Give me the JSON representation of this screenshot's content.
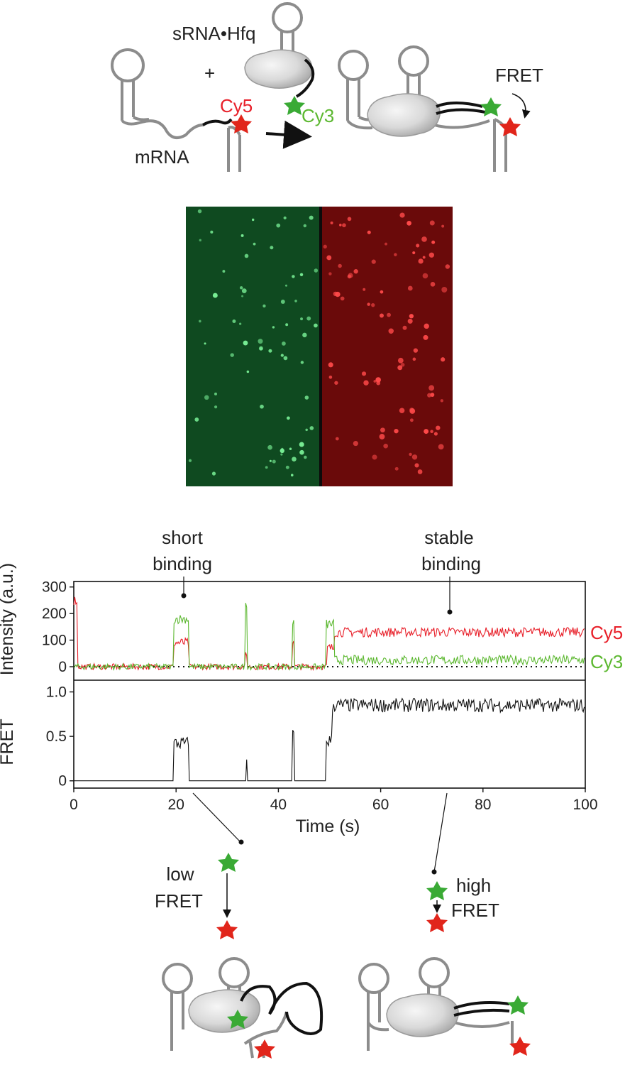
{
  "top_diagram": {
    "srna_hfq_label": "sRNA•Hfq",
    "plus_label": "+",
    "cy5_label": "Cy5",
    "cy3_label": "Cy3",
    "mrna_label": "mRNA",
    "fret_label": "FRET"
  },
  "micrograph": {
    "left_channel_color": "#0f4a20",
    "right_channel_color": "#6a0a0a"
  },
  "annotations": {
    "short_binding_line1": "short",
    "short_binding_line2": "binding",
    "stable_binding_line1": "stable",
    "stable_binding_line2": "binding"
  },
  "intensity_panel": {
    "ylabel": "Intensity (a.u.)",
    "yticks": [
      "300",
      "200",
      "100",
      "0"
    ],
    "cy5_series_label": "Cy5",
    "cy3_series_label": "Cy3"
  },
  "fret_panel": {
    "ylabel": "FRET",
    "yticks": [
      "1.0",
      "0.5",
      "0"
    ]
  },
  "bottom_diagram": {
    "low_fret_line1": "low",
    "low_fret_line2": "FRET",
    "high_fret_line1": "high",
    "high_fret_line2": "FRET"
  },
  "colors": {
    "cy5": "#e8202a",
    "cy3": "#5cb830",
    "star_green": "#3aaa35",
    "star_red": "#e1251b",
    "rna_gray": "#8c8c8c",
    "srna_black": "#111111"
  },
  "chart_data": {
    "type": "line",
    "xlabel": "Time (s)",
    "xlim": [
      0,
      100
    ],
    "xticks": [
      "0",
      "20",
      "40",
      "60",
      "80",
      "100"
    ],
    "panels": [
      {
        "ylabel": "Intensity (a.u.)",
        "ylim": [
          -40,
          310
        ],
        "yticks": [
          0,
          100,
          200,
          300
        ],
        "baseline_dotted": 0,
        "series": [
          {
            "name": "Cy5",
            "color": "#e8202a",
            "segments": [
              {
                "from": 0,
                "to": 0.8,
                "value": 250
              },
              {
                "from": 0.8,
                "to": 19.5,
                "value": 0
              },
              {
                "from": 19.5,
                "to": 22.5,
                "value": 90
              },
              {
                "from": 22.5,
                "to": 33.5,
                "value": 0
              },
              {
                "from": 33.5,
                "to": 33.8,
                "value": 40
              },
              {
                "from": 33.8,
                "to": 42.8,
                "value": 0
              },
              {
                "from": 42.8,
                "to": 43.1,
                "value": 100
              },
              {
                "from": 43.1,
                "to": 49.5,
                "value": 0
              },
              {
                "from": 49.5,
                "to": 51,
                "value": 70
              },
              {
                "from": 51,
                "to": 100,
                "value": 130
              }
            ]
          },
          {
            "name": "Cy3",
            "color": "#5cb830",
            "segments": [
              {
                "from": 0,
                "to": 19.5,
                "value": 0
              },
              {
                "from": 19.5,
                "to": 22.5,
                "value": 180
              },
              {
                "from": 22.5,
                "to": 33.5,
                "value": 0
              },
              {
                "from": 33.5,
                "to": 33.8,
                "value": 240
              },
              {
                "from": 33.8,
                "to": 42.8,
                "value": 0
              },
              {
                "from": 42.8,
                "to": 43.1,
                "value": 160
              },
              {
                "from": 43.1,
                "to": 49.3,
                "value": 0
              },
              {
                "from": 49.3,
                "to": 51,
                "value": 160
              },
              {
                "from": 51,
                "to": 100,
                "value": 25
              }
            ]
          }
        ]
      },
      {
        "ylabel": "FRET",
        "ylim": [
          -0.05,
          1.1
        ],
        "yticks": [
          0,
          0.5,
          1.0
        ],
        "series": [
          {
            "name": "FRET",
            "color": "#111111",
            "segments": [
              {
                "from": 0,
                "to": 19.5,
                "value": 0
              },
              {
                "from": 19.5,
                "to": 22.5,
                "value": 0.42
              },
              {
                "from": 22.5,
                "to": 33.6,
                "value": 0
              },
              {
                "from": 33.6,
                "to": 33.8,
                "value": 0.3
              },
              {
                "from": 33.8,
                "to": 42.8,
                "value": 0
              },
              {
                "from": 42.8,
                "to": 43.1,
                "value": 0.52
              },
              {
                "from": 43.1,
                "to": 49.3,
                "value": 0
              },
              {
                "from": 49.3,
                "to": 50.5,
                "value": 0.45
              },
              {
                "from": 50.5,
                "to": 100,
                "value": 0.85
              }
            ]
          }
        ]
      }
    ]
  }
}
